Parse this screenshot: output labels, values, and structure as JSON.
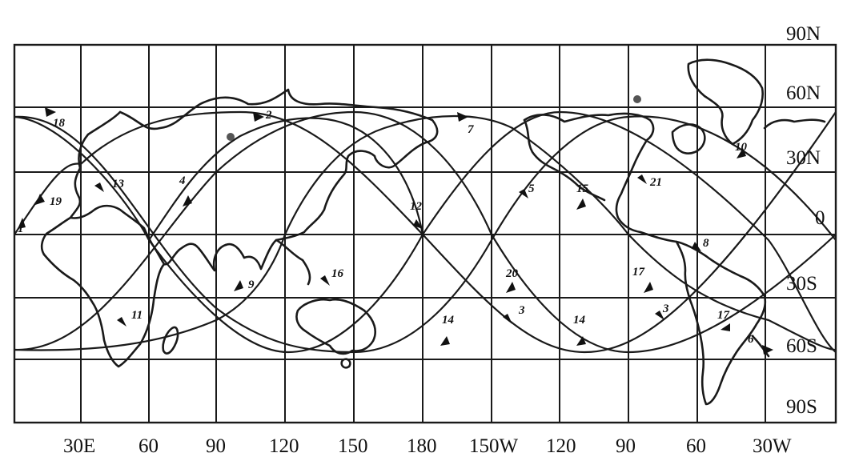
{
  "map": {
    "lat_labels": [
      {
        "text": "90N",
        "value": 90
      },
      {
        "text": "60N",
        "value": 60
      },
      {
        "text": "30N",
        "value": 30
      },
      {
        "text": "0",
        "value": 0
      },
      {
        "text": "30S",
        "value": -30
      },
      {
        "text": "60S",
        "value": -60
      },
      {
        "text": "90S",
        "value": -90
      }
    ],
    "lon_labels": [
      {
        "text": "30E",
        "value": 30
      },
      {
        "text": "60",
        "value": 60
      },
      {
        "text": "90",
        "value": 90
      },
      {
        "text": "120",
        "value": 120
      },
      {
        "text": "150",
        "value": 150
      },
      {
        "text": "180",
        "value": 180
      },
      {
        "text": "150W",
        "value": -150
      },
      {
        "text": "120",
        "value": -120
      },
      {
        "text": "90",
        "value": -90
      },
      {
        "text": "60",
        "value": -60
      },
      {
        "text": "30W",
        "value": -30
      }
    ],
    "route_labels": [
      "1",
      "18",
      "19",
      "13",
      "4",
      "2",
      "11",
      "9",
      "16",
      "7",
      "12",
      "5",
      "14",
      "3",
      "20",
      "15",
      "14",
      "21",
      "17",
      "3",
      "17",
      "6",
      "10",
      "8"
    ],
    "colors": {
      "ink": "#1a1a1a",
      "paper": "#ffffff"
    }
  }
}
